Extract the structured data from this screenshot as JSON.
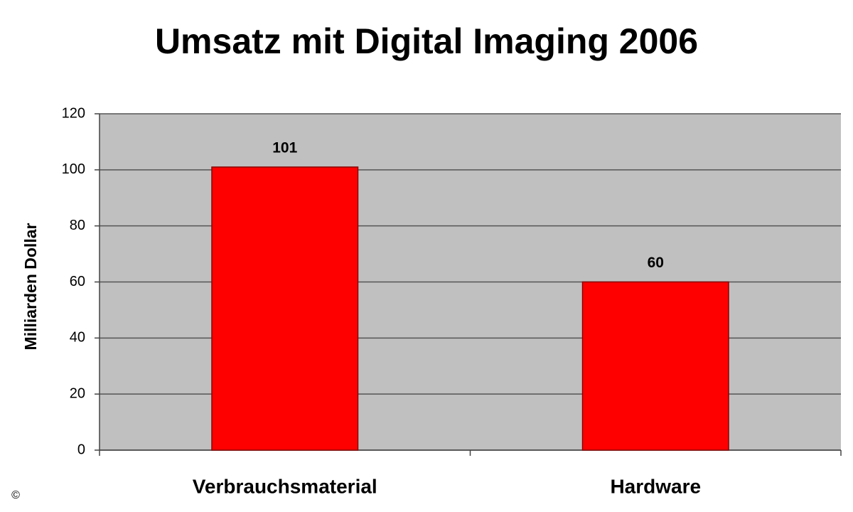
{
  "chart_data": {
    "type": "bar",
    "title": "Umsatz mit Digital Imaging 2006",
    "y_label": "Milliarden Dollar",
    "categories": [
      "Verbrauchsmaterial",
      "Hardware"
    ],
    "values": [
      101,
      60
    ],
    "color": "#ff0000",
    "ylim": [
      0,
      120
    ],
    "yticks": [
      0,
      20,
      40,
      60,
      80,
      100,
      120
    ],
    "grid": true,
    "copyright": "©"
  }
}
